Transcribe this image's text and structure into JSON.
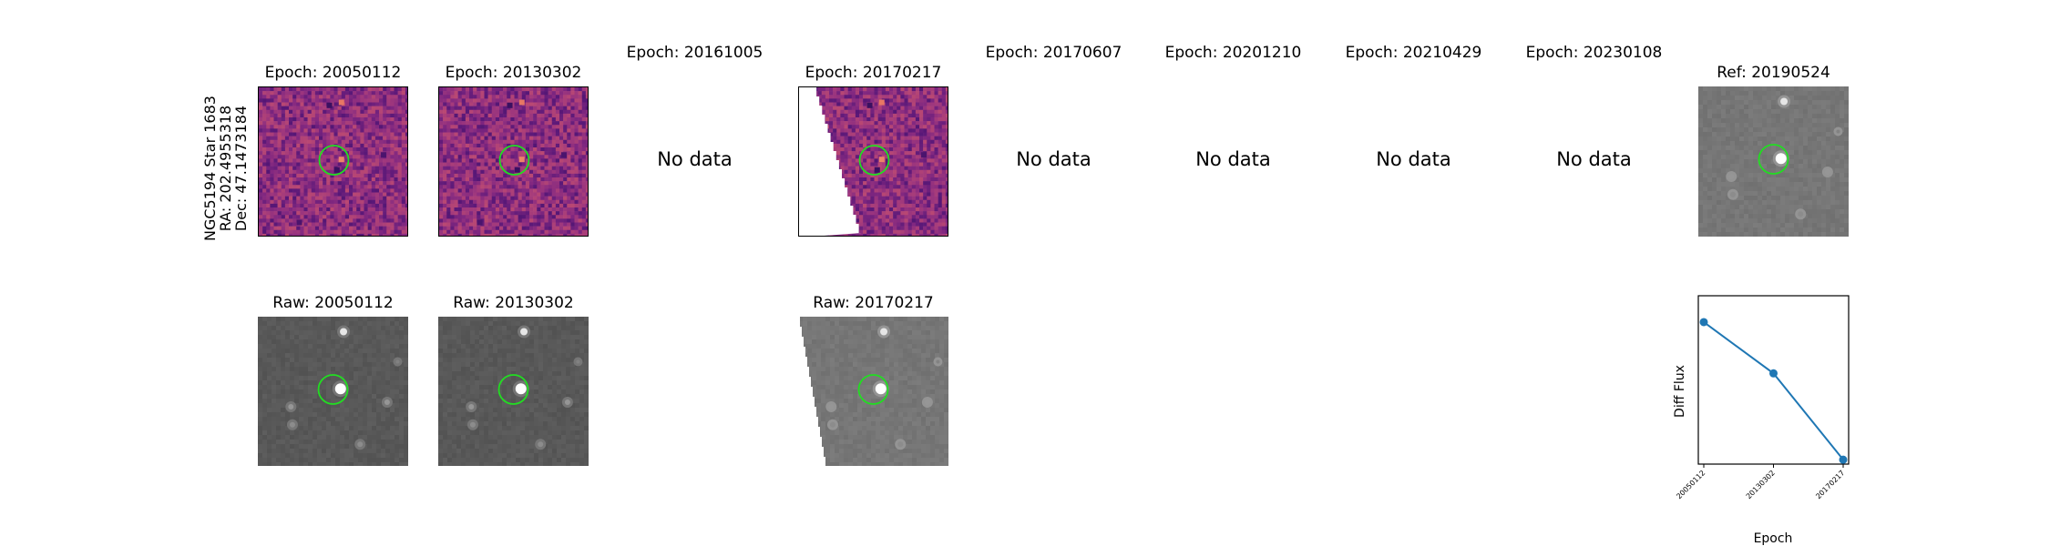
{
  "star": {
    "line1": "NGC5194 Star 1683",
    "line2": "RA: 202.4955318",
    "line3": "Dec: 47.1473184"
  },
  "diff_titles": [
    "Epoch: 20050112",
    "Epoch: 20130302",
    "Epoch: 20161005",
    "Epoch: 20170217",
    "Epoch: 20170607",
    "Epoch: 20201210",
    "Epoch: 20210429",
    "Epoch: 20230108"
  ],
  "ref_title": "Ref: 20190524",
  "raw_titles": [
    "Raw: 20050112",
    "Raw: 20130302",
    "Raw: 20170217"
  ],
  "no_data_label": "No data",
  "colors": {
    "diff_base": "#8f3f86",
    "raw_base": "#5a5a5a",
    "ref_base": "#7a7a7a",
    "circle": "#22dd22",
    "series": "#1f77b4"
  },
  "chart_data": {
    "type": "line",
    "x": [
      "20050112",
      "20130302",
      "20170217"
    ],
    "values": [
      0.82,
      0.47,
      -0.12
    ],
    "xlabel": "Epoch",
    "ylabel": "Diff Flux",
    "ylim": [
      -0.15,
      1.0
    ],
    "grid": false
  }
}
